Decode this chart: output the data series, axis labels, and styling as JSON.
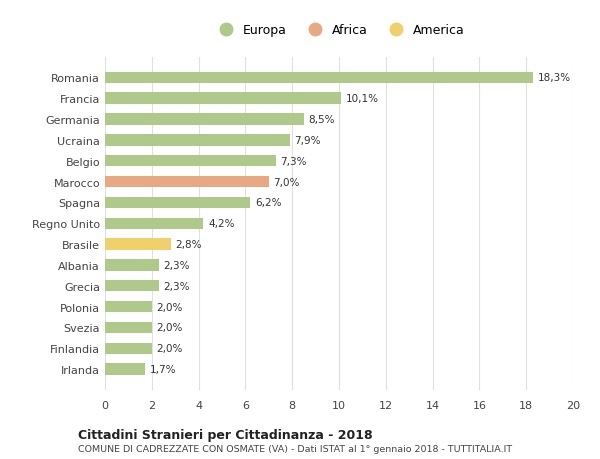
{
  "categories": [
    "Romania",
    "Francia",
    "Germania",
    "Ucraina",
    "Belgio",
    "Marocco",
    "Spagna",
    "Regno Unito",
    "Brasile",
    "Albania",
    "Grecia",
    "Polonia",
    "Svezia",
    "Finlandia",
    "Irlanda"
  ],
  "values": [
    18.3,
    10.1,
    8.5,
    7.9,
    7.3,
    7.0,
    6.2,
    4.2,
    2.8,
    2.3,
    2.3,
    2.0,
    2.0,
    2.0,
    1.7
  ],
  "labels": [
    "18,3%",
    "10,1%",
    "8,5%",
    "7,9%",
    "7,3%",
    "7,0%",
    "6,2%",
    "4,2%",
    "2,8%",
    "2,3%",
    "2,3%",
    "2,0%",
    "2,0%",
    "2,0%",
    "1,7%"
  ],
  "continent": [
    "Europa",
    "Europa",
    "Europa",
    "Europa",
    "Europa",
    "Africa",
    "Europa",
    "Europa",
    "America",
    "Europa",
    "Europa",
    "Europa",
    "Europa",
    "Europa",
    "Europa"
  ],
  "colors": {
    "Europa": "#aec98a",
    "Africa": "#e8a882",
    "America": "#f0d06a"
  },
  "xlim": [
    0,
    20
  ],
  "xticks": [
    0,
    2,
    4,
    6,
    8,
    10,
    12,
    14,
    16,
    18,
    20
  ],
  "title": "Cittadini Stranieri per Cittadinanza - 2018",
  "subtitle": "COMUNE DI CADREZZATE CON OSMATE (VA) - Dati ISTAT al 1° gennaio 2018 - TUTTITALIA.IT",
  "background_color": "#ffffff",
  "grid_color": "#e0e0e0"
}
